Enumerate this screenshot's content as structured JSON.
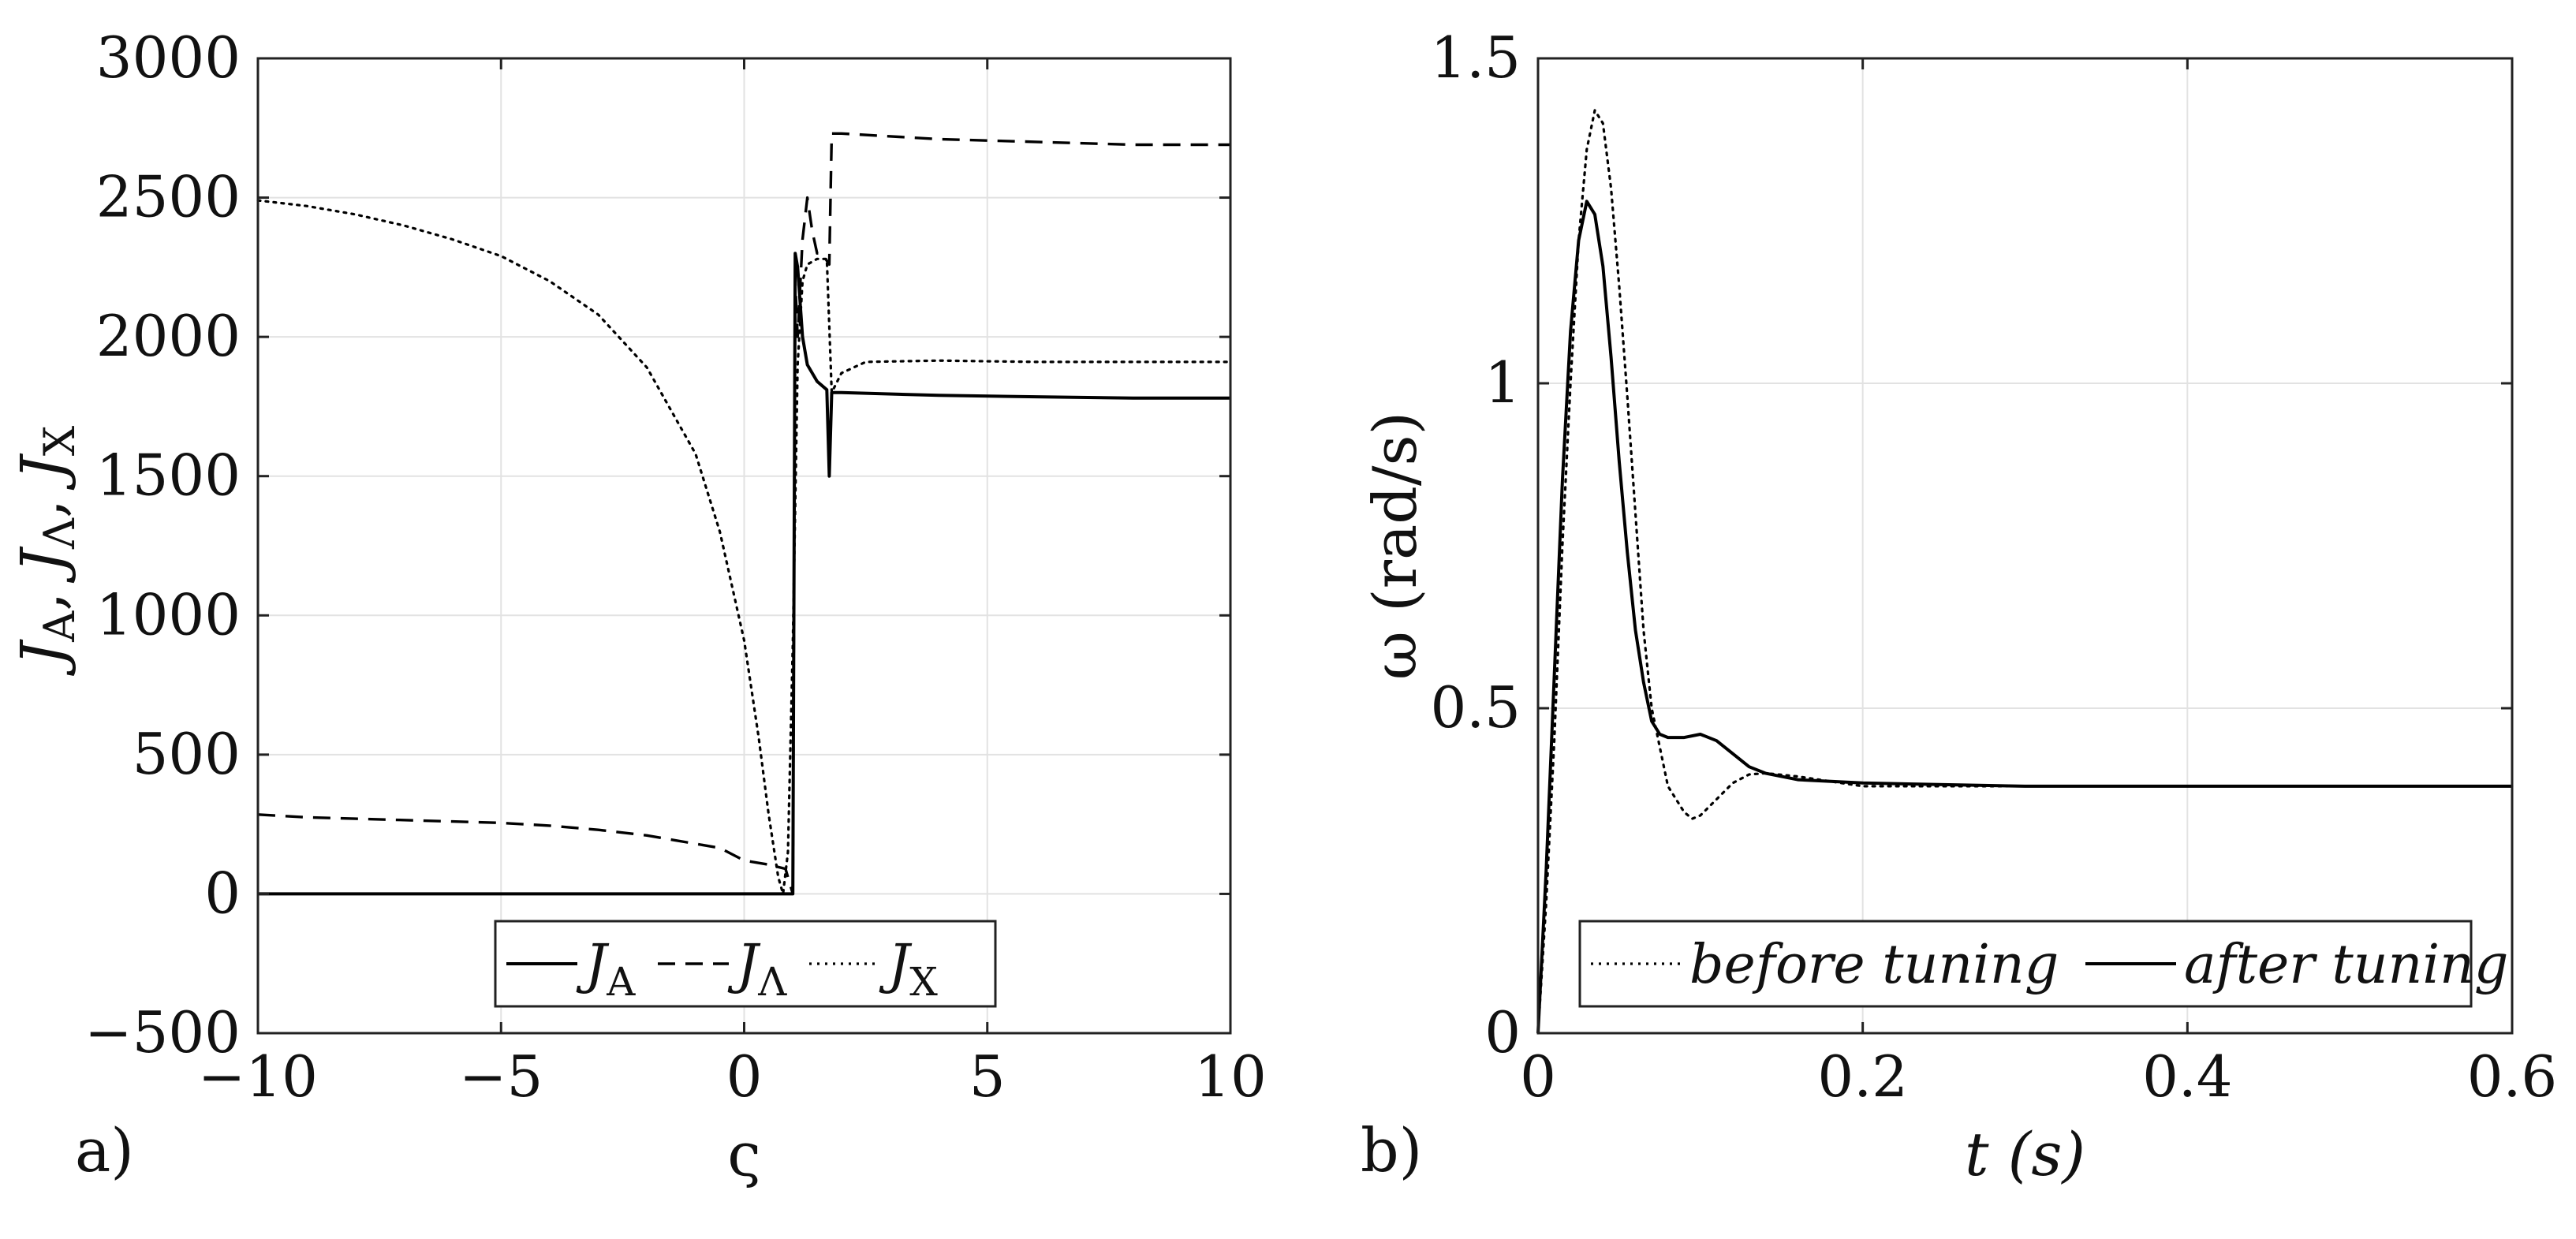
{
  "chart_data": [
    {
      "id": "a",
      "panel_label": "a)",
      "type": "line",
      "xlabel": "ς",
      "ylabel": "J_A, J_Λ, J_X",
      "ylabel_parts": [
        "J",
        "A",
        ", ",
        "J",
        "Λ",
        ", ",
        "J",
        "X"
      ],
      "xlim": [
        -10,
        10
      ],
      "ylim": [
        -500,
        3000
      ],
      "xticks": [
        -10,
        -5,
        0,
        5,
        10
      ],
      "xtick_labels": [
        "−10",
        "−5",
        "0",
        "5",
        "10"
      ],
      "yticks": [
        -500,
        0,
        500,
        1000,
        1500,
        2000,
        2500,
        3000
      ],
      "ytick_labels": [
        "−500",
        "0",
        "500",
        "1000",
        "1500",
        "2000",
        "2500",
        "3000"
      ],
      "grid": true,
      "legend_placement": "bottom-center",
      "legend_orientation": "horizontal",
      "series": [
        {
          "name": "J_A",
          "label_main": "J",
          "label_sub": "A",
          "style": "solid",
          "points": [
            [
              -10,
              0
            ],
            [
              0.9,
              0
            ],
            [
              1.0,
              0
            ],
            [
              1.05,
              2300
            ],
            [
              1.1,
              2250
            ],
            [
              1.2,
              2000
            ],
            [
              1.3,
              1900
            ],
            [
              1.5,
              1840
            ],
            [
              1.7,
              1810
            ],
            [
              1.75,
              1500
            ],
            [
              1.8,
              1800
            ],
            [
              2,
              1800
            ],
            [
              4,
              1790
            ],
            [
              6,
              1785
            ],
            [
              8,
              1780
            ],
            [
              10,
              1780
            ]
          ]
        },
        {
          "name": "J_Λ",
          "label_main": "J",
          "label_sub": "Λ",
          "style": "dashed",
          "points": [
            [
              -10,
              285
            ],
            [
              -9,
              275
            ],
            [
              -8,
              270
            ],
            [
              -7,
              265
            ],
            [
              -6,
              260
            ],
            [
              -5,
              255
            ],
            [
              -4,
              245
            ],
            [
              -3,
              230
            ],
            [
              -2,
              210
            ],
            [
              -1,
              180
            ],
            [
              -0.5,
              165
            ],
            [
              0,
              120
            ],
            [
              0.5,
              105
            ],
            [
              0.85,
              90
            ],
            [
              1.0,
              0
            ],
            [
              1.05,
              2200
            ],
            [
              1.1,
              2000
            ],
            [
              1.2,
              2350
            ],
            [
              1.3,
              2500
            ],
            [
              1.4,
              2380
            ],
            [
              1.5,
              2300
            ],
            [
              1.6,
              2300
            ],
            [
              1.75,
              2260
            ],
            [
              1.8,
              2730
            ],
            [
              2,
              2730
            ],
            [
              4,
              2710
            ],
            [
              6,
              2700
            ],
            [
              8,
              2690
            ],
            [
              10,
              2690
            ]
          ]
        },
        {
          "name": "J_X",
          "label_main": "J",
          "label_sub": "X",
          "style": "dotted",
          "points": [
            [
              -10,
              2490
            ],
            [
              -9,
              2470
            ],
            [
              -8,
              2440
            ],
            [
              -7,
              2400
            ],
            [
              -6,
              2350
            ],
            [
              -5,
              2290
            ],
            [
              -4,
              2200
            ],
            [
              -3,
              2080
            ],
            [
              -2,
              1890
            ],
            [
              -1,
              1580
            ],
            [
              -0.5,
              1300
            ],
            [
              0,
              910
            ],
            [
              0.3,
              560
            ],
            [
              0.5,
              290
            ],
            [
              0.7,
              60
            ],
            [
              0.8,
              0
            ],
            [
              0.9,
              150
            ],
            [
              1.0,
              900
            ],
            [
              1.1,
              1900
            ],
            [
              1.2,
              2200
            ],
            [
              1.3,
              2260
            ],
            [
              1.5,
              2280
            ],
            [
              1.7,
              2280
            ],
            [
              1.8,
              1800
            ],
            [
              2,
              1870
            ],
            [
              2.5,
              1910
            ],
            [
              4,
              1915
            ],
            [
              6,
              1910
            ],
            [
              8,
              1910
            ],
            [
              10,
              1910
            ]
          ]
        }
      ]
    },
    {
      "id": "b",
      "panel_label": "b)",
      "type": "line",
      "xlabel": "t (s)",
      "ylabel": "ω (rad/s)",
      "xlim": [
        0,
        0.6
      ],
      "ylim": [
        0,
        1.5
      ],
      "xticks": [
        0,
        0.2,
        0.4,
        0.6
      ],
      "xtick_labels": [
        "0",
        "0.2",
        "0.4",
        "0.6"
      ],
      "yticks": [
        0,
        0.5,
        1,
        1.5
      ],
      "ytick_labels": [
        "0",
        "0.5",
        "1",
        "1.5"
      ],
      "grid": true,
      "legend_placement": "bottom-center",
      "legend_orientation": "horizontal",
      "series": [
        {
          "name": "before tuning",
          "label_main": "before tuning",
          "label_sub": "",
          "style": "dotted",
          "points": [
            [
              0,
              0
            ],
            [
              0.005,
              0.2
            ],
            [
              0.01,
              0.45
            ],
            [
              0.015,
              0.75
            ],
            [
              0.02,
              1.0
            ],
            [
              0.025,
              1.22
            ],
            [
              0.03,
              1.36
            ],
            [
              0.035,
              1.42
            ],
            [
              0.04,
              1.4
            ],
            [
              0.045,
              1.3
            ],
            [
              0.05,
              1.15
            ],
            [
              0.055,
              0.98
            ],
            [
              0.06,
              0.8
            ],
            [
              0.065,
              0.62
            ],
            [
              0.07,
              0.5
            ],
            [
              0.075,
              0.44
            ],
            [
              0.08,
              0.38
            ],
            [
              0.09,
              0.34
            ],
            [
              0.095,
              0.33
            ],
            [
              0.1,
              0.335
            ],
            [
              0.11,
              0.36
            ],
            [
              0.12,
              0.385
            ],
            [
              0.13,
              0.398
            ],
            [
              0.14,
              0.4
            ],
            [
              0.16,
              0.395
            ],
            [
              0.2,
              0.38
            ],
            [
              0.3,
              0.38
            ],
            [
              0.6,
              0.38
            ]
          ]
        },
        {
          "name": "after tuning",
          "label_main": "after tuning",
          "label_sub": "",
          "style": "solid",
          "points": [
            [
              0,
              0
            ],
            [
              0.005,
              0.25
            ],
            [
              0.01,
              0.55
            ],
            [
              0.015,
              0.85
            ],
            [
              0.02,
              1.08
            ],
            [
              0.025,
              1.22
            ],
            [
              0.03,
              1.28
            ],
            [
              0.035,
              1.26
            ],
            [
              0.04,
              1.18
            ],
            [
              0.045,
              1.04
            ],
            [
              0.05,
              0.88
            ],
            [
              0.055,
              0.74
            ],
            [
              0.06,
              0.62
            ],
            [
              0.065,
              0.54
            ],
            [
              0.07,
              0.48
            ],
            [
              0.075,
              0.46
            ],
            [
              0.08,
              0.455
            ],
            [
              0.09,
              0.455
            ],
            [
              0.1,
              0.46
            ],
            [
              0.11,
              0.45
            ],
            [
              0.12,
              0.43
            ],
            [
              0.13,
              0.41
            ],
            [
              0.14,
              0.4
            ],
            [
              0.16,
              0.39
            ],
            [
              0.2,
              0.385
            ],
            [
              0.3,
              0.38
            ],
            [
              0.6,
              0.38
            ]
          ]
        }
      ]
    }
  ]
}
